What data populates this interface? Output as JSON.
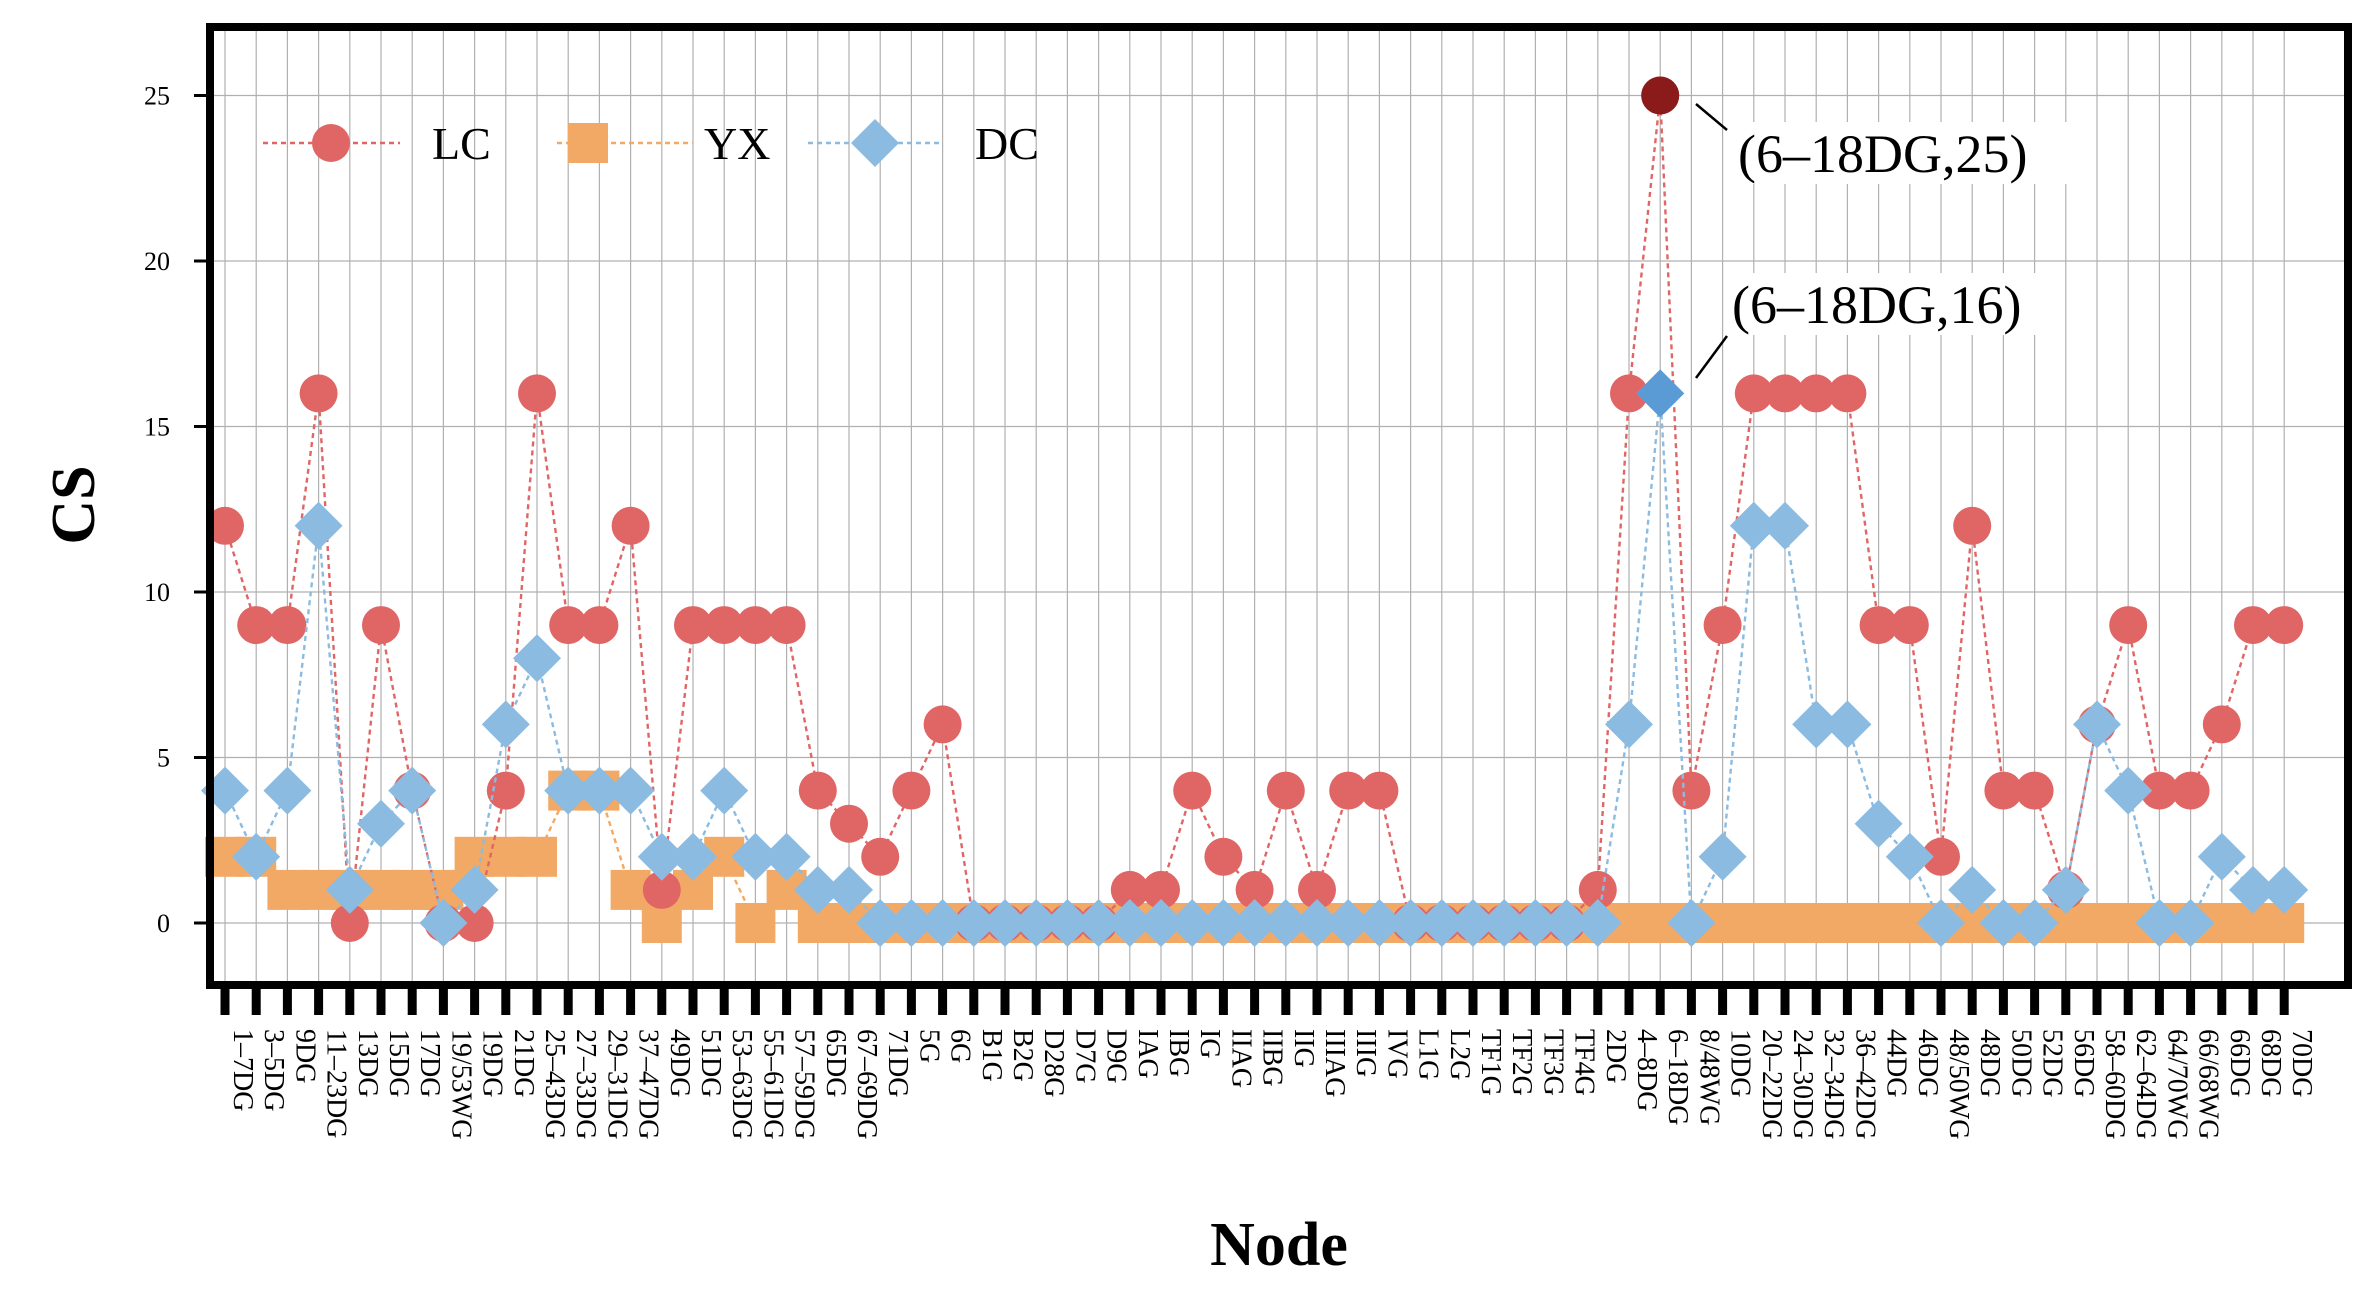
{
  "chart_data": {
    "type": "line",
    "xlabel": "Node",
    "ylabel": "CS",
    "ylim": [
      -1.8,
      27
    ],
    "yticks": [
      0,
      5,
      10,
      15,
      20,
      25
    ],
    "grid": true,
    "legend_position": "top-left",
    "categories": [
      "1–7DG",
      "3–5DG",
      "9DG",
      "11–23DG",
      "13DG",
      "15DG",
      "17DG",
      "19/53WG",
      "19DG",
      "21DG",
      "25–43DG",
      "27–33DG",
      "29–31DG",
      "37–47DG",
      "49DG",
      "51DG",
      "53–63DG",
      "55–61DG",
      "57–59DG",
      "65DG",
      "67–69DG",
      "71DG",
      "5G",
      "6G",
      "B1G",
      "B2G",
      "D28G",
      "D7G",
      "D9G",
      "IAG",
      "IBG",
      "IG",
      "IIAG",
      "IIBG",
      "IIG",
      "IIIAG",
      "IIIG",
      "IVG",
      "L1G",
      "L2G",
      "TF1G",
      "TF2G",
      "TF3G",
      "TF4G",
      "2DG",
      "4–8DG",
      "6–18DG",
      "8/48WG",
      "10DG",
      "20–22DG",
      "24–30DG",
      "32–34DG",
      "36–42DG",
      "44DG",
      "46DG",
      "48/50WG",
      "48DG",
      "50DG",
      "52DG",
      "56DG",
      "58–60DG",
      "62–64DG",
      "64/70WG",
      "66/68WG",
      "66DG",
      "68DG",
      "70DG"
    ],
    "series": [
      {
        "name": "LC",
        "color": "#e06666",
        "marker": "circle",
        "values": [
          12,
          9,
          9,
          16,
          0,
          9,
          4,
          0,
          0,
          4,
          16,
          9,
          9,
          12,
          1,
          9,
          9,
          9,
          9,
          4,
          3,
          2,
          4,
          6,
          0,
          0,
          0,
          0,
          0,
          1,
          1,
          4,
          2,
          1,
          4,
          1,
          4,
          4,
          0,
          0,
          0,
          0,
          0,
          0,
          1,
          16,
          25,
          4,
          9,
          16,
          16,
          16,
          16,
          9,
          9,
          2,
          12,
          4,
          4,
          1,
          6,
          9,
          4,
          4,
          6,
          9,
          9
        ]
      },
      {
        "name": "YX",
        "color": "#f2a966",
        "marker": "square",
        "values": [
          2,
          2,
          1,
          1,
          1,
          1,
          1,
          1,
          2,
          2,
          2,
          4,
          4,
          1,
          0,
          1,
          2,
          0,
          1,
          0,
          0,
          0,
          0,
          0,
          0,
          0,
          0,
          0,
          0,
          0,
          0,
          0,
          0,
          0,
          0,
          0,
          0,
          0,
          0,
          0,
          0,
          0,
          0,
          0,
          0,
          0,
          0,
          0,
          0,
          0,
          0,
          0,
          0,
          0,
          0,
          0,
          0,
          0,
          0,
          0,
          0,
          0,
          0,
          0,
          0,
          0,
          0
        ]
      },
      {
        "name": "DC",
        "color": "#8bbbe0",
        "marker": "diamond",
        "values": [
          4,
          2,
          4,
          12,
          1,
          3,
          4,
          0,
          1,
          6,
          8,
          4,
          4,
          4,
          2,
          2,
          4,
          2,
          2,
          1,
          1,
          0,
          0,
          0,
          0,
          0,
          0,
          0,
          0,
          0,
          0,
          0,
          0,
          0,
          0,
          0,
          0,
          0,
          0,
          0,
          0,
          0,
          0,
          0,
          0,
          6,
          16,
          0,
          2,
          12,
          12,
          6,
          6,
          3,
          2,
          0,
          1,
          0,
          0,
          1,
          6,
          4,
          0,
          0,
          2,
          1,
          1
        ]
      }
    ],
    "annotations": [
      {
        "label": "(6–18DG,25)",
        "category": "6–18DG",
        "value": 25,
        "series": "LC",
        "highlight_color": "#8b1a1a"
      },
      {
        "label": "(6–18DG,16)",
        "category": "6–18DG",
        "value": 16,
        "series": "DC",
        "highlight_color": "#5b9bd5"
      }
    ]
  }
}
